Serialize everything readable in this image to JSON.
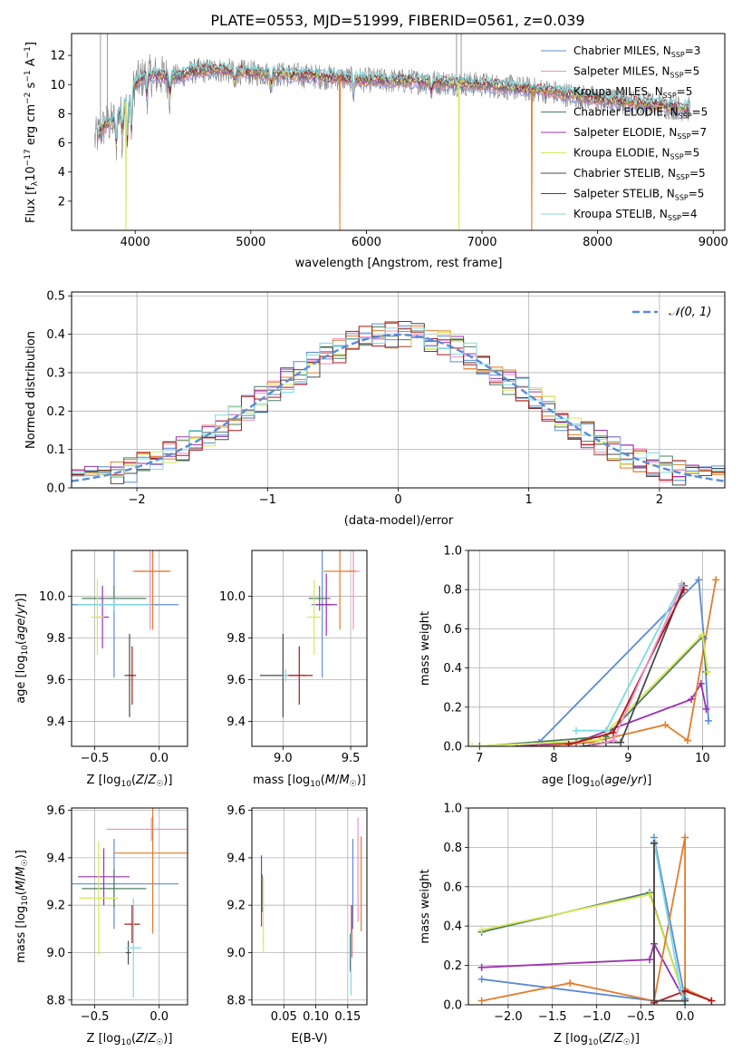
{
  "page_title": "PLATE=0553, MJD=51999, FIBERID=0561, z=0.039",
  "colors": {
    "Chabrier MILES": "#5b8bd8",
    "Salpeter MILES": "#ee8fc8",
    "Kroupa MILES": "#e07d2b",
    "Chabrier ELODIE": "#4e7d60",
    "Salpeter ELODIE": "#9b30b0",
    "Kroupa ELODIE": "#d8e858",
    "Chabrier STELIB": "#4a4a4a",
    "Salpeter STELIB": "#b01818",
    "Kroupa STELIB": "#7edbe0",
    "data": "#808080",
    "gauss": "#5b8bd8"
  },
  "chart_data": [
    {
      "id": "spectrum",
      "type": "line",
      "title": "PLATE=0553, MJD=51999, FIBERID=0561, z=0.039",
      "xlabel": "wavelength [Angstrom, rest frame]",
      "ylabel": "Flux [f_λ 10^-17 erg cm^-2 s^-1 A^-1]",
      "xlim": [
        3450,
        9100
      ],
      "ylim": [
        0,
        13.5
      ],
      "xticks": [
        "4000",
        "5000",
        "6000",
        "7000",
        "8000",
        "9000"
      ],
      "yticks": [
        "2",
        "4",
        "6",
        "8",
        "10",
        "12"
      ],
      "grid": false,
      "legend_position": "top-right",
      "legend": [
        {
          "name": "Chabrier MILES",
          "nssp": "3"
        },
        {
          "name": "Salpeter MILES",
          "nssp": "5"
        },
        {
          "name": "Kroupa MILES",
          "nssp": "5"
        },
        {
          "name": "Chabrier ELODIE",
          "nssp": "5"
        },
        {
          "name": "Salpeter ELODIE",
          "nssp": "7"
        },
        {
          "name": "Kroupa ELODIE",
          "nssp": "5"
        },
        {
          "name": "Chabrier STELIB",
          "nssp": "5"
        },
        {
          "name": "Salpeter STELIB",
          "nssp": "5"
        },
        {
          "name": "Kroupa STELIB",
          "nssp": "4"
        }
      ],
      "continuum": {
        "x": [
          3650,
          3700,
          3750,
          3800,
          3850,
          3900,
          3950,
          4000,
          4050,
          4100,
          4200,
          4300,
          4400,
          4500,
          4700,
          5000,
          5500,
          6000,
          6500,
          7000,
          7500,
          8000,
          8500,
          8800
        ],
        "y": [
          6.2,
          6.8,
          7.3,
          7.4,
          7.8,
          8.5,
          9.2,
          10.0,
          10.4,
          10.6,
          10.6,
          10.5,
          10.6,
          10.9,
          11.0,
          10.8,
          10.6,
          10.3,
          10.2,
          10.0,
          9.6,
          9.0,
          8.6,
          8.3
        ]
      },
      "dips": [
        {
          "series": "Kroupa MILES",
          "x": 5770
        },
        {
          "series": "Kroupa ELODIE",
          "x": 6800
        },
        {
          "series": "Kroupa MILES",
          "x": 7430
        },
        {
          "series": "Kroupa ELODIE",
          "x": 3920
        }
      ]
    },
    {
      "id": "residuals",
      "type": "histogram",
      "xlabel": "(data-model)/error",
      "ylabel": "Normed distribution",
      "xlim": [
        -2.5,
        2.5
      ],
      "ylim": [
        0,
        0.51
      ],
      "xticks": [
        "−2",
        "−1",
        "0",
        "1",
        "2"
      ],
      "yticks": [
        "0.0",
        "0.1",
        "0.2",
        "0.3",
        "0.4",
        "0.5"
      ],
      "grid": true,
      "legend_position": "top-right",
      "legend_label": "𝒩(0, 1)",
      "bin_width": 0.1
    },
    {
      "id": "age-vs-z",
      "type": "errorbar",
      "xlabel": "Z [log10(Z/Z☉)]",
      "ylabel": "age [log10(age/yr)]",
      "xlim": [
        -0.68,
        0.22
      ],
      "ylim": [
        9.28,
        10.22
      ],
      "xticks": [
        {
          "v": -0.5,
          "t": "−0.5"
        },
        {
          "v": 0.0,
          "t": "0.0"
        }
      ],
      "yticks": [
        {
          "v": 9.4,
          "t": "9.4"
        },
        {
          "v": 9.6,
          "t": "9.6"
        },
        {
          "v": 9.8,
          "t": "9.8"
        },
        {
          "v": 10.0,
          "t": "10.0"
        }
      ],
      "points": [
        {
          "series": "Chabrier MILES",
          "x": -0.35,
          "y": 9.96,
          "xerr": 0.5,
          "yerr": 0.35
        },
        {
          "series": "Salpeter MILES",
          "x": -0.07,
          "y": 10.12,
          "xerr": 0.14,
          "yerr": 0.28
        },
        {
          "series": "Kroupa MILES",
          "x": -0.05,
          "y": 10.12,
          "xerr": 0.14,
          "yerr": 0.28
        },
        {
          "series": "Chabrier ELODIE",
          "x": -0.35,
          "y": 9.99,
          "xerr": 0.25,
          "yerr": 0.06
        },
        {
          "series": "Salpeter ELODIE",
          "x": -0.44,
          "y": 9.9,
          "xerr": 0.05,
          "yerr": 0.15
        },
        {
          "series": "Kroupa ELODIE",
          "x": -0.48,
          "y": 9.9,
          "xerr": 0.05,
          "yerr": 0.18
        },
        {
          "series": "Chabrier STELIB",
          "x": -0.23,
          "y": 9.62,
          "xerr": 0.04,
          "yerr": 0.2
        },
        {
          "series": "Salpeter STELIB",
          "x": -0.21,
          "y": 9.62,
          "xerr": 0.03,
          "yerr": 0.14
        },
        {
          "series": "Kroupa STELIB",
          "x": -0.35,
          "y": 9.96,
          "xerr": 0.28,
          "yerr": 0.03
        }
      ]
    },
    {
      "id": "age-vs-mass",
      "type": "errorbar",
      "xlabel": "mass [log10(M/M☉)]",
      "ylabel": "",
      "xlim": [
        8.77,
        9.62
      ],
      "ylim": [
        9.28,
        10.22
      ],
      "xticks": [
        {
          "v": 9.0,
          "t": "9.0"
        },
        {
          "v": 9.5,
          "t": "9.5"
        }
      ],
      "yticks": [
        {
          "v": 9.4,
          "t": "9.4"
        },
        {
          "v": 9.6,
          "t": "9.6"
        },
        {
          "v": 9.8,
          "t": "9.8"
        },
        {
          "v": 10.0,
          "t": "10.0"
        }
      ],
      "points": [
        {
          "series": "Chabrier MILES",
          "x": 9.29,
          "y": 9.96,
          "xerr": 0.08,
          "yerr": 0.35
        },
        {
          "series": "Salpeter MILES",
          "x": 9.52,
          "y": 10.12,
          "xerr": 0.05,
          "yerr": 0.28
        },
        {
          "series": "Kroupa MILES",
          "x": 9.42,
          "y": 10.12,
          "xerr": 0.12,
          "yerr": 0.28
        },
        {
          "series": "Chabrier ELODIE",
          "x": 9.27,
          "y": 9.99,
          "xerr": 0.08,
          "yerr": 0.06
        },
        {
          "series": "Salpeter ELODIE",
          "x": 9.32,
          "y": 9.96,
          "xerr": 0.08,
          "yerr": 0.15
        },
        {
          "series": "Kroupa ELODIE",
          "x": 9.23,
          "y": 9.9,
          "xerr": 0.05,
          "yerr": 0.18
        },
        {
          "series": "Chabrier STELIB",
          "x": 9.0,
          "y": 9.62,
          "xerr": 0.17,
          "yerr": 0.2
        },
        {
          "series": "Salpeter STELIB",
          "x": 9.12,
          "y": 9.62,
          "xerr": 0.1,
          "yerr": 0.14
        },
        {
          "series": "Kroupa STELIB",
          "x": 9.02,
          "y": 9.62,
          "xerr": 0.02,
          "yerr": 0.03
        }
      ]
    },
    {
      "id": "weight-vs-age",
      "type": "line",
      "xlabel": "age [log10(age/yr)]",
      "ylabel": "mass weight",
      "xlim": [
        6.85,
        10.3
      ],
      "ylim": [
        0,
        1.0
      ],
      "xticks": [
        {
          "v": 7,
          "t": "7"
        },
        {
          "v": 8,
          "t": "8"
        },
        {
          "v": 9,
          "t": "9"
        },
        {
          "v": 10,
          "t": "10"
        }
      ],
      "yticks": [
        {
          "v": 0.0,
          "t": "0.0"
        },
        {
          "v": 0.2,
          "t": "0.2"
        },
        {
          "v": 0.4,
          "t": "0.4"
        },
        {
          "v": 0.6,
          "t": "0.6"
        },
        {
          "v": 0.8,
          "t": "0.8"
        },
        {
          "v": 1.0,
          "t": "1.0"
        }
      ],
      "series": [
        {
          "name": "Chabrier MILES",
          "x": [
            7.0,
            7.8,
            9.95,
            10.02,
            10.08
          ],
          "y": [
            0.0,
            0.02,
            0.85,
            0.55,
            0.13
          ]
        },
        {
          "name": "Salpeter ELODIE",
          "x": [
            7.5,
            8.3,
            9.85,
            9.98,
            10.05
          ],
          "y": [
            0.0,
            0.02,
            0.24,
            0.32,
            0.19
          ]
        },
        {
          "name": "Kroupa MILES",
          "x": [
            7.8,
            8.5,
            9.5,
            9.8,
            10.18
          ],
          "y": [
            0.0,
            0.02,
            0.11,
            0.03,
            0.85
          ]
        },
        {
          "name": "Chabrier ELODIE",
          "x": [
            7.0,
            8.7,
            10.0,
            10.05
          ],
          "y": [
            0.0,
            0.05,
            0.56,
            0.38
          ]
        },
        {
          "name": "Kroupa ELODIE",
          "x": [
            6.9,
            8.6,
            10.0,
            10.07
          ],
          "y": [
            0.0,
            0.03,
            0.57,
            0.38
          ]
        },
        {
          "name": "Kroupa STELIB",
          "x": [
            8.3,
            8.7,
            9.72
          ],
          "y": [
            0.08,
            0.08,
            0.83
          ]
        },
        {
          "name": "Chabrier STELIB",
          "x": [
            8.4,
            8.7,
            8.9,
            9.75
          ],
          "y": [
            0.0,
            0.02,
            0.02,
            0.82
          ]
        },
        {
          "name": "Salpeter STELIB",
          "x": [
            8.2,
            8.8,
            9.75
          ],
          "y": [
            0.01,
            0.07,
            0.8
          ]
        },
        {
          "name": "Salpeter MILES",
          "x": [
            8.5,
            8.8,
            9.72
          ],
          "y": [
            0.0,
            0.03,
            0.82
          ]
        }
      ]
    },
    {
      "id": "mass-vs-z",
      "type": "errorbar",
      "xlabel": "Z [log10(Z/Z☉)]",
      "ylabel": "mass [log10(M/M☉)]",
      "xlim": [
        -0.68,
        0.22
      ],
      "ylim": [
        8.78,
        9.61
      ],
      "xticks": [
        {
          "v": -0.5,
          "t": "−0.5"
        },
        {
          "v": 0.0,
          "t": "0.0"
        }
      ],
      "yticks": [
        {
          "v": 8.8,
          "t": "8.8"
        },
        {
          "v": 9.0,
          "t": "9.0"
        },
        {
          "v": 9.2,
          "t": "9.2"
        },
        {
          "v": 9.4,
          "t": "9.4"
        },
        {
          "v": 9.6,
          "t": "9.6"
        }
      ],
      "points": [
        {
          "series": "Chabrier MILES",
          "x": -0.35,
          "y": 9.29,
          "xerr": 0.5,
          "yerr": 0.19
        },
        {
          "series": "Salpeter MILES",
          "x": -0.06,
          "y": 9.52,
          "xerr": 0.35,
          "yerr": 0.05
        },
        {
          "series": "Kroupa MILES",
          "x": -0.05,
          "y": 9.42,
          "xerr": 0.3,
          "yerr": 0.34
        },
        {
          "series": "Chabrier ELODIE",
          "x": -0.35,
          "y": 9.27,
          "xerr": 0.25,
          "yerr": 0.08
        },
        {
          "series": "Salpeter ELODIE",
          "x": -0.43,
          "y": 9.32,
          "xerr": 0.2,
          "yerr": 0.12
        },
        {
          "series": "Kroupa ELODIE",
          "x": -0.47,
          "y": 9.23,
          "xerr": 0.15,
          "yerr": 0.24
        },
        {
          "series": "Chabrier STELIB",
          "x": -0.24,
          "y": 9.0,
          "xerr": 0.02,
          "yerr": 0.05
        },
        {
          "series": "Salpeter STELIB",
          "x": -0.21,
          "y": 9.12,
          "xerr": 0.06,
          "yerr": 0.08
        },
        {
          "series": "Kroupa STELIB",
          "x": -0.2,
          "y": 9.02,
          "xerr": 0.06,
          "yerr": 0.21
        }
      ]
    },
    {
      "id": "mass-vs-ebv",
      "type": "errorbar",
      "xlabel": "E(B-V)",
      "ylabel": "",
      "xlim": [
        0.0,
        0.18
      ],
      "ylim": [
        8.78,
        9.61
      ],
      "xticks": [
        {
          "v": 0.05,
          "t": "0.05"
        },
        {
          "v": 0.1,
          "t": "0.10"
        },
        {
          "v": 0.15,
          "t": "0.15"
        }
      ],
      "yticks": [
        {
          "v": 8.8,
          "t": "8.8"
        },
        {
          "v": 9.0,
          "t": "9.0"
        },
        {
          "v": 9.2,
          "t": "9.2"
        },
        {
          "v": 9.4,
          "t": "9.4"
        },
        {
          "v": 9.6,
          "t": "9.6"
        }
      ],
      "points": [
        {
          "series": "Chabrier MILES",
          "x": 0.158,
          "y": 9.29,
          "xerr": 0.0,
          "yerr": 0.19
        },
        {
          "series": "Salpeter MILES",
          "x": 0.166,
          "y": 9.35,
          "xerr": 0.0,
          "yerr": 0.22
        },
        {
          "series": "Kroupa MILES",
          "x": 0.171,
          "y": 9.29,
          "xerr": 0.0,
          "yerr": 0.2
        },
        {
          "series": "Chabrier ELODIE",
          "x": 0.016,
          "y": 9.25,
          "xerr": 0.0,
          "yerr": 0.08
        },
        {
          "series": "Salpeter ELODIE",
          "x": 0.015,
          "y": 9.26,
          "xerr": 0.0,
          "yerr": 0.15
        },
        {
          "series": "Kroupa ELODIE",
          "x": 0.018,
          "y": 9.16,
          "xerr": 0.0,
          "yerr": 0.16
        },
        {
          "series": "Chabrier STELIB",
          "x": 0.154,
          "y": 9.0,
          "xerr": 0.0,
          "yerr": 0.08
        },
        {
          "series": "Salpeter STELIB",
          "x": 0.156,
          "y": 9.09,
          "xerr": 0.0,
          "yerr": 0.11
        },
        {
          "series": "Kroupa STELIB",
          "x": 0.155,
          "y": 8.95,
          "xerr": 0.0,
          "yerr": 0.13
        }
      ]
    },
    {
      "id": "weight-vs-z",
      "type": "line",
      "xlabel": "Z [log10(Z/Z☉)]",
      "ylabel": "mass weight",
      "xlim": [
        -2.45,
        0.45
      ],
      "ylim": [
        0,
        1.0
      ],
      "xticks": [
        {
          "v": -2.0,
          "t": "−2.0"
        },
        {
          "v": -1.5,
          "t": "−1.5"
        },
        {
          "v": -1.0,
          "t": "−1.0"
        },
        {
          "v": -0.5,
          "t": "−0.5"
        },
        {
          "v": 0.0,
          "t": "0.0"
        }
      ],
      "yticks": [
        {
          "v": 0.0,
          "t": "0.0"
        },
        {
          "v": 0.2,
          "t": "0.2"
        },
        {
          "v": 0.4,
          "t": "0.4"
        },
        {
          "v": 0.6,
          "t": "0.6"
        },
        {
          "v": 0.8,
          "t": "0.8"
        },
        {
          "v": 1.0,
          "t": "1.0"
        }
      ],
      "series": [
        {
          "name": "Chabrier ELODIE",
          "x": [
            -2.3,
            -0.4,
            -0.02,
            0.0
          ],
          "y": [
            0.37,
            0.57,
            0.05,
            0.03
          ]
        },
        {
          "name": "Kroupa ELODIE",
          "x": [
            -2.3,
            -0.4,
            -0.02,
            0.0
          ],
          "y": [
            0.38,
            0.56,
            0.05,
            0.03
          ]
        },
        {
          "name": "Salpeter ELODIE",
          "x": [
            -2.3,
            -0.4,
            -0.35,
            0.0
          ],
          "y": [
            0.19,
            0.23,
            0.31,
            0.02
          ]
        },
        {
          "name": "Chabrier MILES",
          "x": [
            -2.3,
            -0.35,
            -0.35,
            0.0
          ],
          "y": [
            0.13,
            0.02,
            0.85,
            0.03
          ]
        },
        {
          "name": "Kroupa MILES",
          "x": [
            -2.3,
            -1.3,
            -0.35,
            0.0,
            0.0,
            0.3
          ],
          "y": [
            0.02,
            0.11,
            0.02,
            0.85,
            0.08,
            0.02
          ]
        },
        {
          "name": "Salpeter STELIB",
          "x": [
            -0.35,
            -0.35,
            0.0,
            0.3
          ],
          "y": [
            0.82,
            0.01,
            0.07,
            0.02
          ]
        },
        {
          "name": "Kroupa STELIB",
          "x": [
            -0.35,
            -0.05,
            0.0
          ],
          "y": [
            0.83,
            0.08,
            0.0
          ]
        },
        {
          "name": "Chabrier STELIB",
          "x": [
            -0.35,
            -0.35,
            0.0
          ],
          "y": [
            0.82,
            0.02,
            0.02
          ]
        }
      ]
    }
  ]
}
